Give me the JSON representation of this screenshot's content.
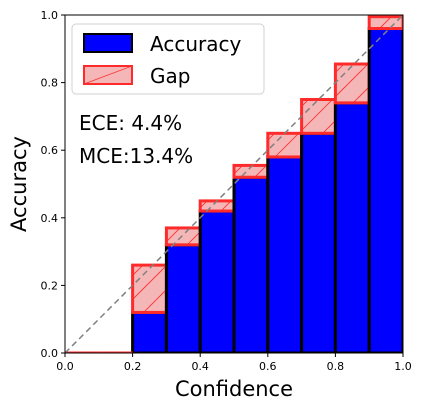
{
  "chart_data": {
    "type": "bar",
    "xlabel": "Confidence",
    "ylabel": "Accuracy",
    "xlim": [
      0.0,
      1.0
    ],
    "ylim": [
      0.0,
      1.0
    ],
    "xticks": [
      "0.0",
      "0.2",
      "0.4",
      "0.6",
      "0.8",
      "1.0"
    ],
    "yticks": [
      "0.0",
      "0.2",
      "0.4",
      "0.6",
      "0.8",
      "1.0"
    ],
    "bin_edges": [
      0.0,
      0.1,
      0.2,
      0.3,
      0.4,
      0.5,
      0.6,
      0.7,
      0.8,
      0.9,
      1.0
    ],
    "series": [
      {
        "name": "Accuracy",
        "values": [
          0.0,
          0.0,
          0.12,
          0.32,
          0.42,
          0.52,
          0.58,
          0.65,
          0.74,
          0.96
        ]
      },
      {
        "name": "Gap",
        "values": [
          0.0,
          0.0,
          0.14,
          0.05,
          0.03,
          0.035,
          0.07,
          0.1,
          0.115,
          0.035
        ]
      }
    ],
    "diagonal": {
      "from": [
        0.0,
        0.0
      ],
      "to": [
        1.0,
        1.0
      ],
      "style": "dashed",
      "color": "#808080"
    },
    "annotations": [
      "ECE: 4.4%",
      "MCE:13.4%"
    ],
    "legend_position": "top-left",
    "colors": {
      "accuracy_fill": "#0000ff",
      "accuracy_edge": "#000000",
      "gap_fill": "#f4b6b6",
      "gap_edge": "#ff2a2a"
    },
    "grid": false
  }
}
